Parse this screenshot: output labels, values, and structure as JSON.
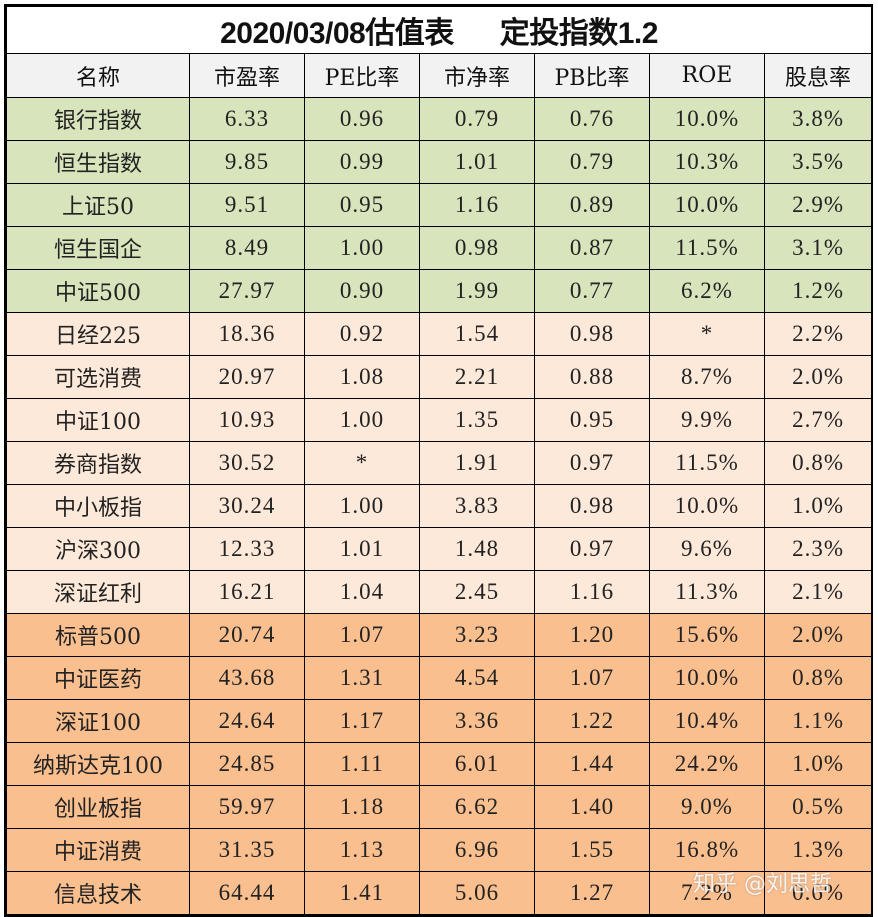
{
  "title": {
    "left": "2020/03/08估值表",
    "right": "定投指数1.2"
  },
  "columns": [
    "名称",
    "市盈率",
    "PE比率",
    "市净率",
    "PB比率",
    "ROE",
    "股息率"
  ],
  "colors": {
    "header_bg": "#f2f2f2",
    "green": "#d8e4bc",
    "peach": "#fde9d9",
    "orange": "#fabf8f"
  },
  "rows": [
    {
      "group": "green",
      "cells": [
        "银行指数",
        "6.33",
        "0.96",
        "0.79",
        "0.76",
        "10.0%",
        "3.8%"
      ]
    },
    {
      "group": "green",
      "cells": [
        "恒生指数",
        "9.85",
        "0.99",
        "1.01",
        "0.79",
        "10.3%",
        "3.5%"
      ]
    },
    {
      "group": "green",
      "cells": [
        "上证50",
        "9.51",
        "0.95",
        "1.16",
        "0.89",
        "10.0%",
        "2.9%"
      ]
    },
    {
      "group": "green",
      "cells": [
        "恒生国企",
        "8.49",
        "1.00",
        "0.98",
        "0.87",
        "11.5%",
        "3.1%"
      ]
    },
    {
      "group": "green",
      "cells": [
        "中证500",
        "27.97",
        "0.90",
        "1.99",
        "0.77",
        "6.2%",
        "1.2%"
      ]
    },
    {
      "group": "peach",
      "cells": [
        "日经225",
        "18.36",
        "0.92",
        "1.54",
        "0.98",
        "*",
        "2.2%"
      ]
    },
    {
      "group": "peach",
      "cells": [
        "可选消费",
        "20.97",
        "1.08",
        "2.21",
        "0.88",
        "8.7%",
        "2.0%"
      ]
    },
    {
      "group": "peach",
      "cells": [
        "中证100",
        "10.93",
        "1.00",
        "1.35",
        "0.95",
        "9.9%",
        "2.7%"
      ]
    },
    {
      "group": "peach",
      "cells": [
        "券商指数",
        "30.52",
        "*",
        "1.91",
        "0.97",
        "11.5%",
        "0.8%"
      ]
    },
    {
      "group": "peach",
      "cells": [
        "中小板指",
        "30.24",
        "1.00",
        "3.83",
        "0.98",
        "10.0%",
        "1.0%"
      ]
    },
    {
      "group": "peach",
      "cells": [
        "沪深300",
        "12.33",
        "1.01",
        "1.48",
        "0.97",
        "9.6%",
        "2.3%"
      ]
    },
    {
      "group": "peach",
      "cells": [
        "深证红利",
        "16.21",
        "1.04",
        "2.45",
        "1.16",
        "11.3%",
        "2.1%"
      ]
    },
    {
      "group": "orange",
      "cells": [
        "标普500",
        "20.74",
        "1.07",
        "3.23",
        "1.20",
        "15.6%",
        "2.0%"
      ]
    },
    {
      "group": "orange",
      "cells": [
        "中证医药",
        "43.68",
        "1.31",
        "4.54",
        "1.07",
        "10.0%",
        "0.8%"
      ]
    },
    {
      "group": "orange",
      "cells": [
        "深证100",
        "24.64",
        "1.17",
        "3.36",
        "1.22",
        "10.4%",
        "1.1%"
      ]
    },
    {
      "group": "orange",
      "cells": [
        "纳斯达克100",
        "24.85",
        "1.11",
        "6.01",
        "1.44",
        "24.2%",
        "1.0%"
      ]
    },
    {
      "group": "orange",
      "cells": [
        "创业板指",
        "59.97",
        "1.18",
        "6.62",
        "1.40",
        "9.0%",
        "0.5%"
      ]
    },
    {
      "group": "orange",
      "cells": [
        "中证消费",
        "31.35",
        "1.13",
        "6.96",
        "1.55",
        "16.8%",
        "1.3%"
      ]
    },
    {
      "group": "orange",
      "cells": [
        "信息技术",
        "64.44",
        "1.41",
        "5.06",
        "1.27",
        "7.2%",
        "0.6%"
      ]
    }
  ],
  "watermark": "知乎 @刘思哲"
}
